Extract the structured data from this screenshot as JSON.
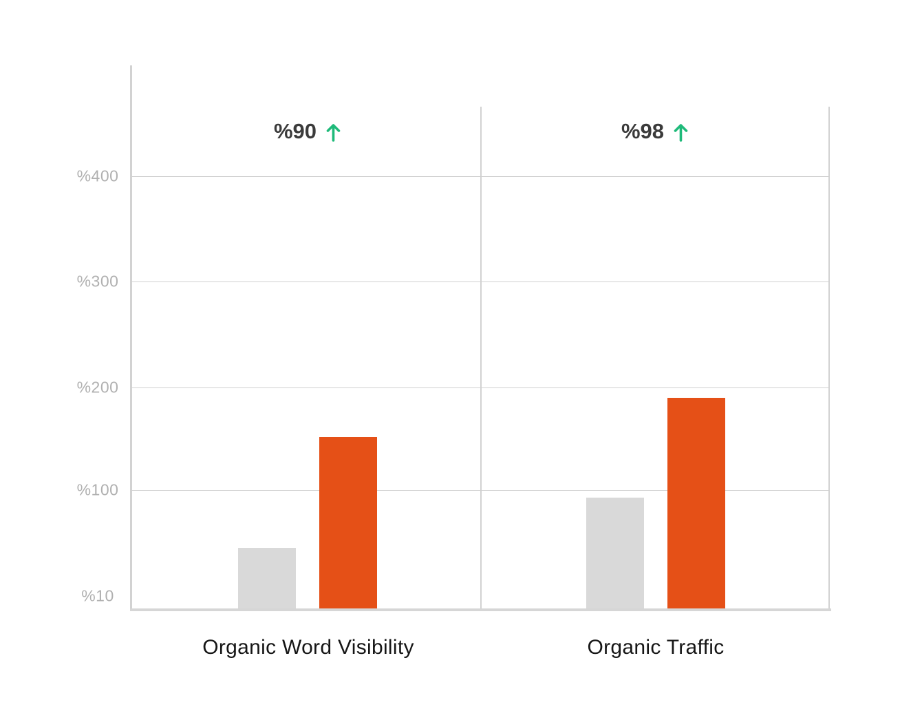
{
  "chart_data": {
    "type": "bar",
    "title": "",
    "categories": [
      "Organic Word Visibility",
      "Organic Traffic"
    ],
    "series": [
      {
        "id": "gray",
        "color": "#d9d9d9",
        "values": [
          56,
          94
        ]
      },
      {
        "id": "orange",
        "color": "#e55017",
        "values": [
          152,
          190
        ]
      }
    ],
    "annotations": [
      {
        "category": "Organic Word Visibility",
        "label": "%90",
        "arrow": "up"
      },
      {
        "category": "Organic Traffic",
        "label": "%98",
        "arrow": "up"
      }
    ],
    "y_axis": {
      "tick_labels": [
        "%400",
        "%300",
        "%200",
        "%100",
        "%10"
      ],
      "tick_values": [
        400,
        300,
        200,
        100,
        10
      ],
      "gridlines_at": [
        400,
        300,
        200,
        100
      ]
    },
    "ylim": [
      10,
      480
    ],
    "grid": true,
    "legend_position": "none"
  },
  "colors": {
    "bar_gray": "#d9d9d9",
    "bar_orange": "#e55017",
    "arrow_green": "#1fba7a",
    "grid_line": "#d0d0d0",
    "axis_line": "#d2d2d2",
    "tick_label": "#b0b0b0",
    "annotation_text": "#3b3b3b",
    "category_label": "#161616"
  }
}
